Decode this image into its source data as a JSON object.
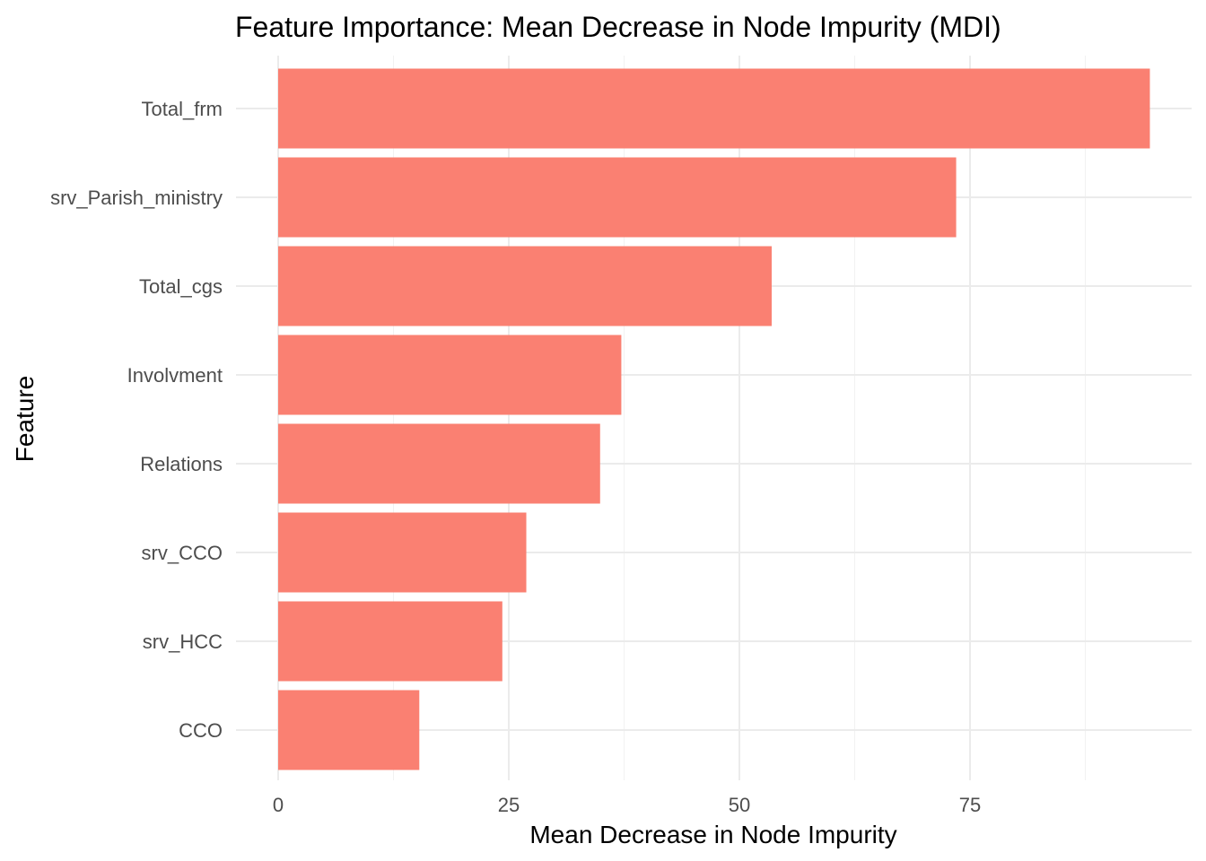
{
  "chart_data": {
    "type": "bar",
    "orientation": "horizontal",
    "title": "Feature Importance: Mean Decrease in Node Impurity (MDI)",
    "xlabel": "Mean Decrease in Node Impurity",
    "ylabel": "Feature",
    "categories": [
      "Total_frm",
      "srv_Parish_ministry",
      "Total_cgs",
      "Involvment",
      "Relations",
      "srv_CCO",
      "srv_HCC",
      "CCO"
    ],
    "values": [
      94.5,
      73.5,
      53.5,
      37.2,
      34.9,
      26.9,
      24.3,
      15.3
    ],
    "xlim": [
      0,
      95
    ],
    "xticks": [
      0,
      25,
      50,
      75
    ],
    "bar_color": "#FA8072",
    "grid": true,
    "legend": "none"
  }
}
